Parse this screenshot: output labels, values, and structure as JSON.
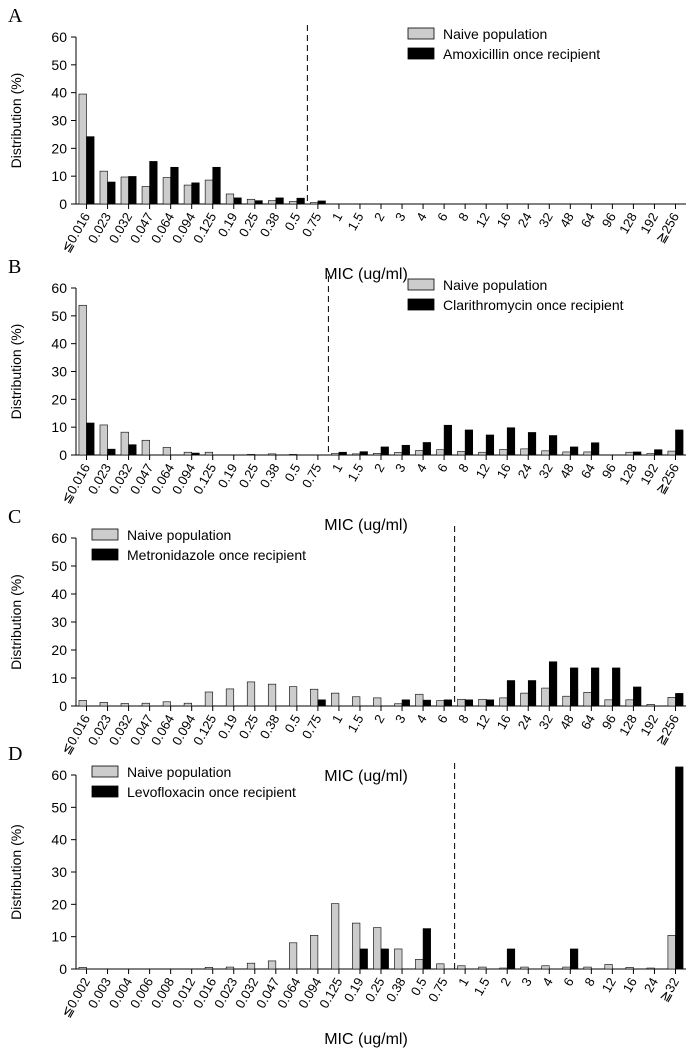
{
  "chart_data": [
    {
      "type": "bar",
      "panel_label": "A",
      "xlabel": "MIC (ug/ml)",
      "ylabel": "Distribution (%)",
      "ylim": [
        0,
        60
      ],
      "yticks": [
        0,
        10,
        20,
        30,
        40,
        50,
        60
      ],
      "categories": [
        "≦0.016",
        "0.023",
        "0.032",
        "0.047",
        "0.064",
        "0.094",
        "0.125",
        "0.19",
        "0.25",
        "0.38",
        "0.5",
        "0.75",
        "1",
        "1.5",
        "2",
        "3",
        "4",
        "6",
        "8",
        "12",
        "16",
        "24",
        "32",
        "48",
        "64",
        "96",
        "128",
        "192",
        "≧256"
      ],
      "breakpoint_after_index": 10,
      "legend_position": "top-right",
      "series": [
        {
          "name": "Naive population",
          "color": "#cccccc",
          "values": [
            39.5,
            11.8,
            9.7,
            6.3,
            9.5,
            6.8,
            8.6,
            3.6,
            1.7,
            1.2,
            0.9,
            0.5,
            0,
            0,
            0,
            0,
            0,
            0,
            0,
            0,
            0,
            0,
            0,
            0,
            0,
            0,
            0,
            0,
            0
          ]
        },
        {
          "name": "Amoxicillin once recipient",
          "color": "#000000",
          "values": [
            24.2,
            7.9,
            9.9,
            15.3,
            13.2,
            7.6,
            13.2,
            2.2,
            1.2,
            2.2,
            2.1,
            1.1,
            0,
            0,
            0,
            0,
            0,
            0,
            0,
            0,
            0,
            0,
            0,
            0,
            0,
            0,
            0,
            0,
            0
          ]
        }
      ]
    },
    {
      "type": "bar",
      "panel_label": "B",
      "xlabel": "MIC (ug/ml)",
      "ylabel": "Distribution (%)",
      "ylim": [
        0,
        60
      ],
      "yticks": [
        0,
        10,
        20,
        30,
        40,
        50,
        60
      ],
      "categories": [
        "≦0.016",
        "0.023",
        "0.032",
        "0.047",
        "0.064",
        "0.094",
        "0.125",
        "0.19",
        "0.25",
        "0.38",
        "0.5",
        "0.75",
        "1",
        "1.5",
        "2",
        "3",
        "4",
        "6",
        "8",
        "12",
        "16",
        "24",
        "32",
        "48",
        "64",
        "96",
        "128",
        "192",
        "≧256"
      ],
      "breakpoint_after_index": 11,
      "legend_position": "top-right",
      "series": [
        {
          "name": "Naive population",
          "color": "#cccccc",
          "values": [
            53.8,
            10.8,
            8.2,
            5.3,
            2.7,
            1.0,
            1.0,
            0,
            0.2,
            0.4,
            0.2,
            0,
            0.5,
            0.4,
            0.6,
            0.9,
            1.6,
            1.9,
            1.3,
            1.0,
            2.0,
            2.2,
            1.5,
            1.1,
            1.1,
            0,
            1.0,
            0.5,
            1.4
          ]
        },
        {
          "name": "Clarithromycin once recipient",
          "color": "#000000",
          "values": [
            11.5,
            2.1,
            3.7,
            0,
            0,
            0.7,
            0,
            0,
            0,
            0,
            0,
            0,
            1.0,
            1.2,
            2.9,
            3.5,
            4.5,
            10.7,
            9.0,
            7.2,
            9.8,
            8.1,
            7.0,
            2.9,
            4.4,
            0,
            1.1,
            1.9,
            9.0
          ]
        }
      ]
    },
    {
      "type": "bar",
      "panel_label": "C",
      "xlabel": "MIC (ug/ml)",
      "ylabel": "Distribution (%)",
      "ylim": [
        0,
        60
      ],
      "yticks": [
        0,
        10,
        20,
        30,
        40,
        50,
        60
      ],
      "categories": [
        "≦0.016",
        "0.023",
        "0.032",
        "0.047",
        "0.064",
        "0.094",
        "0.125",
        "0.19",
        "0.25",
        "0.38",
        "0.5",
        "0.75",
        "1",
        "1.5",
        "2",
        "3",
        "4",
        "6",
        "8",
        "12",
        "16",
        "24",
        "32",
        "48",
        "64",
        "96",
        "128",
        "192",
        "≧256"
      ],
      "breakpoint_after_index": 17,
      "legend_position": "top-left",
      "series": [
        {
          "name": "Naive population",
          "color": "#cccccc",
          "values": [
            2.0,
            1.3,
            0.9,
            1.0,
            1.5,
            1.0,
            5.0,
            6.1,
            8.6,
            7.8,
            6.9,
            6.0,
            4.6,
            3.3,
            2.9,
            0.8,
            4.2,
            1.9,
            2.4,
            2.4,
            2.9,
            4.6,
            6.4,
            3.5,
            4.9,
            2.2,
            2.2,
            0.6,
            3.1
          ]
        },
        {
          "name": "Metronidazole once recipient",
          "color": "#000000",
          "values": [
            0,
            0,
            0,
            0,
            0,
            0,
            0,
            0,
            0,
            0,
            0,
            2.2,
            0,
            0,
            0,
            2.2,
            2.1,
            2.2,
            2.2,
            2.2,
            9.1,
            9.1,
            15.8,
            13.6,
            13.6,
            13.6,
            6.8,
            0,
            4.5
          ]
        }
      ]
    },
    {
      "type": "bar",
      "panel_label": "D",
      "xlabel": "MIC (ug/ml)",
      "ylabel": "Distribution (%)",
      "ylim": [
        0,
        60
      ],
      "yticks": [
        0,
        10,
        20,
        30,
        40,
        50,
        60
      ],
      "categories": [
        "≦0.002",
        "0.003",
        "0.004",
        "0.006",
        "0.008",
        "0.012",
        "0.016",
        "0.023",
        "0.032",
        "0.047",
        "0.064",
        "0.094",
        "0.125",
        "0.19",
        "0.25",
        "0.38",
        "0.5",
        "0.75",
        "1",
        "1.5",
        "2",
        "3",
        "4",
        "6",
        "8",
        "12",
        "16",
        "24",
        "≧32"
      ],
      "breakpoint_after_index": 17,
      "legend_position": "top-left",
      "series": [
        {
          "name": "Naive population",
          "color": "#cccccc",
          "values": [
            0.5,
            0,
            0,
            0,
            0,
            0,
            0.5,
            0.6,
            1.8,
            2.5,
            8.1,
            10.4,
            20.2,
            14.2,
            12.8,
            6.2,
            3.0,
            1.6,
            1.0,
            0.6,
            0.3,
            0.6,
            1.0,
            0.6,
            0.6,
            1.4,
            0.5,
            0.3,
            10.4
          ]
        },
        {
          "name": "Levofloxacin once recipient",
          "color": "#000000",
          "values": [
            0,
            0,
            0,
            0,
            0,
            0,
            0,
            0,
            0,
            0,
            0,
            0,
            0,
            6.2,
            6.2,
            0,
            12.5,
            0,
            0,
            0,
            6.2,
            0,
            0,
            6.2,
            0,
            0,
            0,
            0,
            62.5
          ]
        }
      ]
    }
  ]
}
